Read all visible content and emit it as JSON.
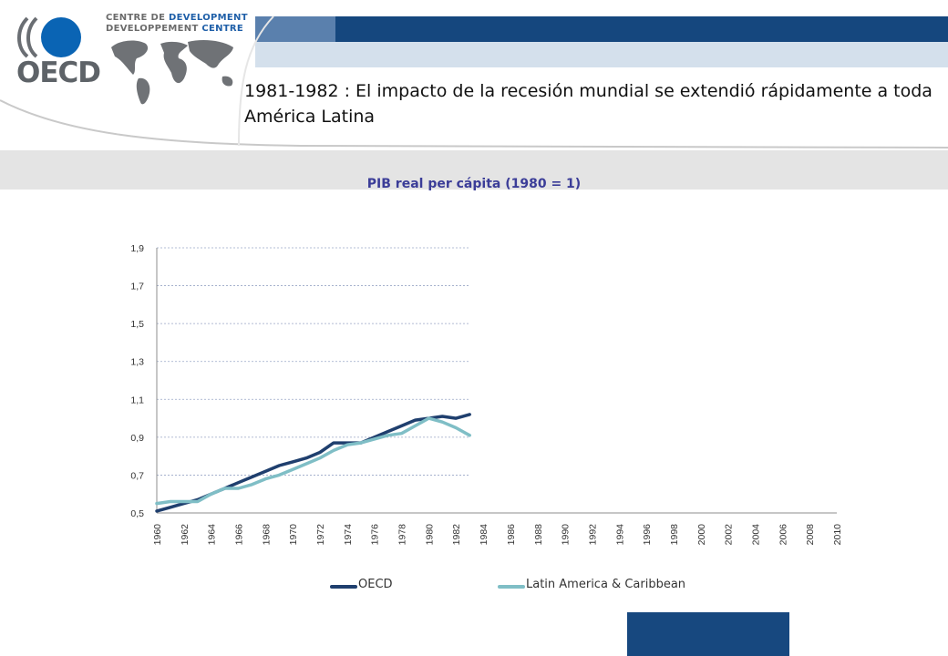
{
  "header": {
    "brand_line_1_a": "CENTRE DE ",
    "brand_line_1_b": "DEVELOPMENT",
    "brand_line_2_a": "DEVELOPPEMENT ",
    "brand_line_2_b": "CENTRE",
    "logo_word": "OECD",
    "slide_title": "1981-1982 : El impacto de la recesión mundial se extendió rápidamente a toda América Latina",
    "colors": {
      "navy": "#15477e",
      "mid_blue": "#5a80ad",
      "light_blue": "#d4e0ec",
      "logo_blue": "#0a64b4"
    }
  },
  "chart_data": {
    "type": "line",
    "title": "PIB real per cápita (1980 = 1)",
    "xlabel": "",
    "ylabel": "",
    "xlim": [
      1960,
      2010
    ],
    "ylim": [
      0.5,
      1.9
    ],
    "y_ticks": [
      "1,9",
      "1,7",
      "1,5",
      "1,3",
      "1,1",
      "0,9",
      "0,7",
      "0,5"
    ],
    "y_tick_values": [
      1.9,
      1.7,
      1.5,
      1.3,
      1.1,
      0.9,
      0.7,
      0.5
    ],
    "x_ticks": [
      "1960",
      "1962",
      "1964",
      "1966",
      "1968",
      "1970",
      "1972",
      "1974",
      "1976",
      "1978",
      "1980",
      "1982",
      "1984",
      "1986",
      "1988",
      "1990",
      "1992",
      "1994",
      "1996",
      "1998",
      "2000",
      "2002",
      "2004",
      "2006",
      "2008",
      "2010"
    ],
    "x_tick_values": [
      1960,
      1962,
      1964,
      1966,
      1968,
      1970,
      1972,
      1974,
      1976,
      1978,
      1980,
      1982,
      1984,
      1986,
      1988,
      1990,
      1992,
      1994,
      1996,
      1998,
      2000,
      2002,
      2004,
      2006,
      2008,
      2010
    ],
    "grid": "horizontal dashed",
    "legend_position": "bottom",
    "x": [
      1960,
      1961,
      1962,
      1963,
      1964,
      1965,
      1966,
      1967,
      1968,
      1969,
      1970,
      1971,
      1972,
      1973,
      1974,
      1975,
      1976,
      1977,
      1978,
      1979,
      1980,
      1981,
      1982,
      1983
    ],
    "series": [
      {
        "name": "OECD",
        "color": "#1f3f6e",
        "values": [
          0.51,
          0.53,
          0.55,
          0.57,
          0.6,
          0.63,
          0.66,
          0.69,
          0.72,
          0.75,
          0.77,
          0.79,
          0.82,
          0.87,
          0.87,
          0.87,
          0.9,
          0.93,
          0.96,
          0.99,
          1.0,
          1.01,
          1.0,
          1.02
        ]
      },
      {
        "name": "Latin America & Caribbean",
        "color": "#7fbec6",
        "values": [
          0.55,
          0.56,
          0.56,
          0.56,
          0.6,
          0.63,
          0.63,
          0.65,
          0.68,
          0.7,
          0.73,
          0.76,
          0.79,
          0.83,
          0.86,
          0.87,
          0.89,
          0.91,
          0.92,
          0.96,
          1.0,
          0.98,
          0.95,
          0.91
        ]
      }
    ]
  }
}
